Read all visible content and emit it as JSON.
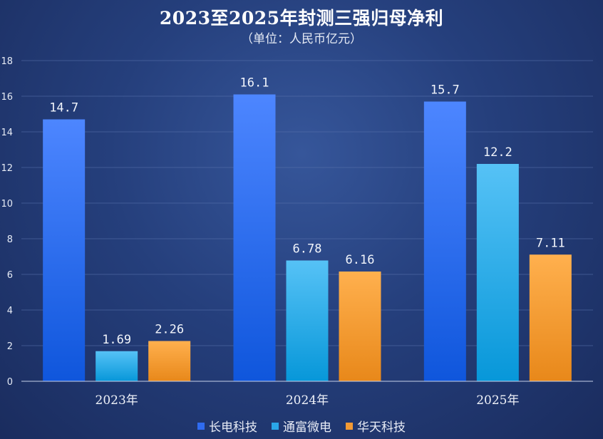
{
  "title": "2023至2025年封测三强归母净利",
  "subtitle": "（单位：人民币亿元）",
  "chart_data": {
    "type": "bar",
    "categories": [
      "2023年",
      "2024年",
      "2025年"
    ],
    "series": [
      {
        "name": "长电科技",
        "values": [
          14.7,
          16.1,
          15.7
        ],
        "labels": [
          "14.7",
          "16.1",
          "15.7"
        ],
        "color": "#2f6bf0"
      },
      {
        "name": "通富微电",
        "values": [
          1.69,
          6.78,
          12.2
        ],
        "labels": [
          "1.69",
          "6.78",
          "12.2"
        ],
        "color": "#2aa6e8"
      },
      {
        "name": "华天科技",
        "values": [
          2.26,
          6.16,
          7.11
        ],
        "labels": [
          "2.26",
          "6.16",
          "7.11"
        ],
        "color": "#f39a34"
      }
    ],
    "ylim": [
      0,
      18
    ],
    "yticks": [
      0,
      2,
      4,
      6,
      8,
      10,
      12,
      14,
      16,
      18
    ],
    "grid": true,
    "legend": "bottom"
  }
}
